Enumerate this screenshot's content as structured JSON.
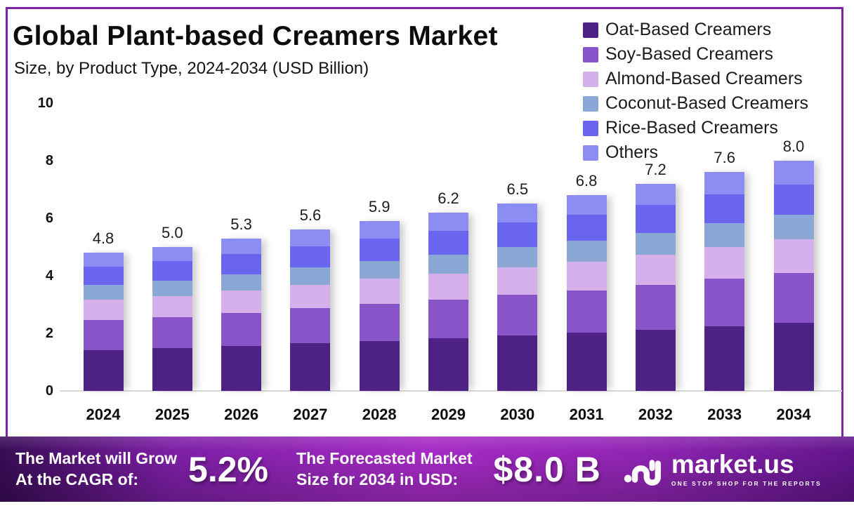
{
  "chart_data": {
    "type": "bar",
    "stacked": true,
    "title": "Global Plant-based Creamers Market",
    "subtitle": "Size, by Product Type, 2024-2034 (USD Billion)",
    "xlabel": "",
    "ylabel": "",
    "ylim": [
      0,
      10
    ],
    "yticks": [
      0,
      2,
      4,
      6,
      8,
      10
    ],
    "grid": false,
    "legend_position": "top-right",
    "categories": [
      "2024",
      "2025",
      "2026",
      "2027",
      "2028",
      "2029",
      "2030",
      "2031",
      "2032",
      "2033",
      "2034"
    ],
    "totals": [
      "4.8",
      "5.0",
      "5.3",
      "5.6",
      "5.9",
      "6.2",
      "6.5",
      "6.8",
      "7.2",
      "7.6",
      "8.0"
    ],
    "series": [
      {
        "name": "Oat-Based Creamers",
        "slug": "oat",
        "color": "#4e2185",
        "values": [
          1.42,
          1.48,
          1.56,
          1.65,
          1.74,
          1.83,
          1.92,
          2.01,
          2.12,
          2.24,
          2.36
        ]
      },
      {
        "name": "Soy-Based Creamers",
        "slug": "soy",
        "color": "#8a54c9",
        "values": [
          1.05,
          1.09,
          1.16,
          1.22,
          1.29,
          1.35,
          1.42,
          1.48,
          1.57,
          1.66,
          1.74
        ]
      },
      {
        "name": "Almond-Based Creamers",
        "slug": "almond",
        "color": "#d6b0ea",
        "values": [
          0.7,
          0.73,
          0.77,
          0.81,
          0.86,
          0.9,
          0.94,
          0.99,
          1.04,
          1.1,
          1.16
        ]
      },
      {
        "name": "Coconut-Based Creamers",
        "slug": "coconut",
        "color": "#8aa7d6",
        "values": [
          0.51,
          0.54,
          0.57,
          0.6,
          0.63,
          0.66,
          0.7,
          0.73,
          0.77,
          0.81,
          0.86
        ]
      },
      {
        "name": "Rice-Based Creamers",
        "slug": "rice",
        "color": "#6a65ee",
        "values": [
          0.64,
          0.67,
          0.7,
          0.74,
          0.78,
          0.82,
          0.86,
          0.9,
          0.96,
          1.01,
          1.06
        ]
      },
      {
        "name": "Others",
        "slug": "others",
        "color": "#8c8df2",
        "values": [
          0.48,
          0.49,
          0.54,
          0.58,
          0.6,
          0.64,
          0.66,
          0.69,
          0.74,
          0.78,
          0.82
        ]
      }
    ]
  },
  "banner": {
    "grow_line1": "The Market will Grow",
    "grow_line2": "At the CAGR of:",
    "cagr": "5.2%",
    "forecast_line1": "The Forecasted Market",
    "forecast_line2": "Size for 2034 in USD:",
    "forecast_value": "$8.0 B",
    "brand": "market.us",
    "tagline": "ONE STOP SHOP FOR THE REPORTS"
  },
  "colors": {
    "frame_border": "#7b24a4",
    "axis_baseline": "#d9d9d9",
    "banner_left": "#380b55",
    "banner_mid": "#a62bc5",
    "banner_right": "#62158c",
    "text": "#0c0c0c"
  }
}
